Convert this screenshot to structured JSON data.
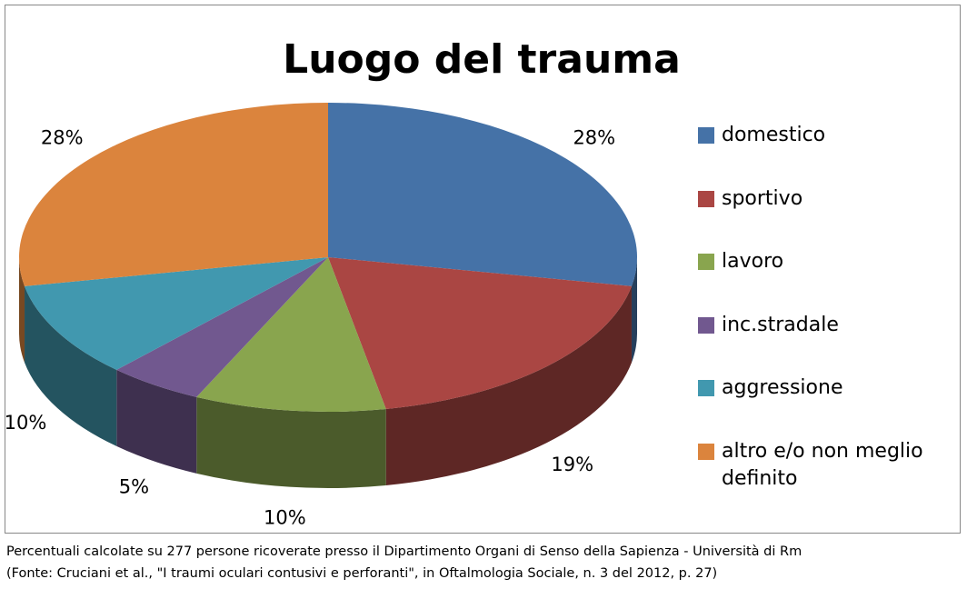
{
  "chart_data": {
    "type": "pie3d",
    "title": "Luogo del trauma",
    "categories": [
      "domestico",
      "sportivo",
      "lavoro",
      "inc.stradale",
      "aggressione",
      "altro e/o non meglio definito"
    ],
    "values": [
      28,
      19,
      10,
      5,
      10,
      28
    ],
    "value_labels": [
      "28%",
      "19%",
      "10%",
      "5%",
      "10%",
      "28%"
    ],
    "colors": [
      "#4572a7",
      "#aa4643",
      "#89a54e",
      "#71588f",
      "#4198af",
      "#db843d"
    ],
    "legend": "right",
    "footnotes": [
      "Percentuali calcolate su 277 persone ricoverate presso il Dipartimento Organi di Senso della Sapienza - Università di Rm",
      "(Fonte: Cruciani et al., \"I traumi oculari contusivi e perforanti\", in Oftalmologia Sociale, n. 3 del 2012, p. 27)"
    ]
  }
}
